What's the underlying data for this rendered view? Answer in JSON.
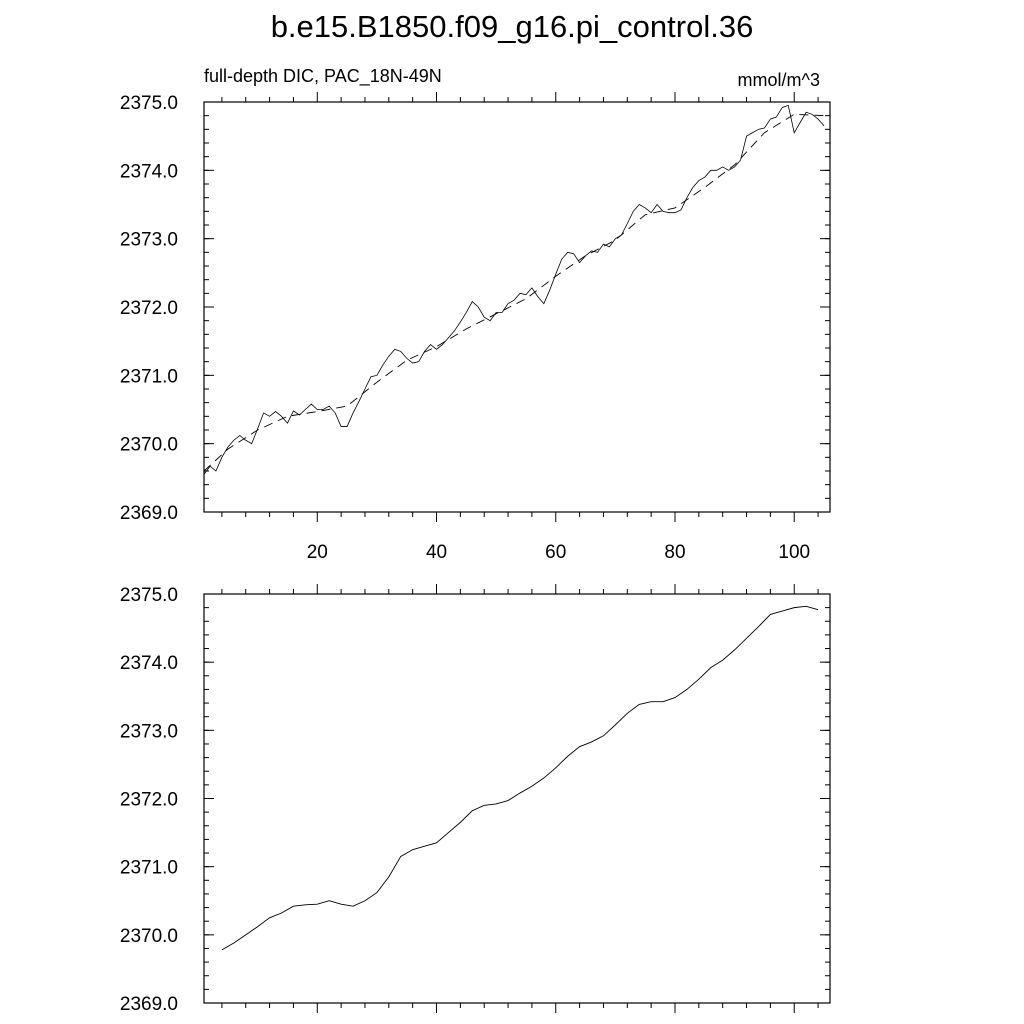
{
  "figure": {
    "title": "b.e15.B1850.f09_g16.pi_control.36"
  },
  "chart_data": [
    {
      "type": "line",
      "title": "full-depth DIC, PAC_18N-49N",
      "units": "mmol/m^3",
      "xlim": [
        1,
        106
      ],
      "ylim": [
        2369.0,
        2375.0
      ],
      "xticks": [
        20,
        40,
        60,
        80,
        100
      ],
      "yticks": [
        2369.0,
        2370.0,
        2371.0,
        2372.0,
        2373.0,
        2374.0,
        2375.0
      ],
      "ytick_labels": [
        "2369.0",
        "2370.0",
        "2371.0",
        "2372.0",
        "2373.0",
        "2374.0",
        "2375.0"
      ],
      "xtick_labels": [
        "20",
        "40",
        "60",
        "80",
        "100"
      ],
      "series": [
        {
          "style": "solid",
          "x": [
            1,
            2,
            3,
            4,
            5,
            6,
            7,
            8,
            9,
            10,
            11,
            12,
            13,
            14,
            15,
            16,
            17,
            18,
            19,
            20,
            21,
            22,
            23,
            24,
            25,
            26,
            27,
            28,
            29,
            30,
            31,
            32,
            33,
            34,
            35,
            36,
            37,
            38,
            39,
            40,
            41,
            42,
            43,
            44,
            45,
            46,
            47,
            48,
            49,
            50,
            51,
            52,
            53,
            54,
            55,
            56,
            57,
            58,
            59,
            60,
            61,
            62,
            63,
            64,
            65,
            66,
            67,
            68,
            69,
            70,
            71,
            72,
            73,
            74,
            75,
            76,
            77,
            78,
            79,
            80,
            81,
            82,
            83,
            84,
            85,
            86,
            87,
            88,
            89,
            90,
            91,
            92,
            93,
            94,
            95,
            96,
            97,
            98,
            99,
            100,
            101,
            102,
            103,
            104,
            105
          ],
          "values": [
            2369.55,
            2369.67,
            2369.6,
            2369.8,
            2369.95,
            2370.05,
            2370.12,
            2370.05,
            2370.0,
            2370.22,
            2370.45,
            2370.4,
            2370.47,
            2370.4,
            2370.3,
            2370.48,
            2370.42,
            2370.5,
            2370.58,
            2370.5,
            2370.5,
            2370.55,
            2370.45,
            2370.25,
            2370.25,
            2370.45,
            2370.62,
            2370.8,
            2370.98,
            2371.0,
            2371.15,
            2371.28,
            2371.38,
            2371.35,
            2371.25,
            2371.18,
            2371.2,
            2371.35,
            2371.45,
            2371.38,
            2371.45,
            2371.55,
            2371.65,
            2371.78,
            2371.92,
            2372.08,
            2372.0,
            2371.85,
            2371.8,
            2371.92,
            2371.92,
            2372.05,
            2372.1,
            2372.2,
            2372.18,
            2372.28,
            2372.15,
            2372.05,
            2372.25,
            2372.48,
            2372.7,
            2372.8,
            2372.78,
            2372.65,
            2372.75,
            2372.82,
            2372.8,
            2372.92,
            2372.88,
            2373.0,
            2373.05,
            2373.22,
            2373.4,
            2373.5,
            2373.45,
            2373.38,
            2373.5,
            2373.4,
            2373.38,
            2373.38,
            2373.42,
            2373.6,
            2373.75,
            2373.85,
            2373.9,
            2374.0,
            2374.0,
            2374.05,
            2374.0,
            2374.05,
            2374.15,
            2374.5,
            2374.55,
            2374.6,
            2374.62,
            2374.75,
            2374.78,
            2374.92,
            2374.95,
            2374.55,
            2374.7,
            2374.85,
            2374.82,
            2374.75,
            2374.65
          ]
        },
        {
          "style": "dashed",
          "x": [
            1,
            5,
            10,
            15,
            20,
            25,
            30,
            35,
            40,
            45,
            50,
            55,
            60,
            65,
            70,
            75,
            80,
            85,
            90,
            95,
            100,
            105
          ],
          "values": [
            2369.6,
            2369.92,
            2370.2,
            2370.4,
            2370.47,
            2370.55,
            2370.9,
            2371.22,
            2371.42,
            2371.68,
            2371.9,
            2372.12,
            2372.45,
            2372.75,
            2372.98,
            2373.35,
            2373.45,
            2373.75,
            2374.08,
            2374.55,
            2374.82,
            2374.8
          ]
        }
      ]
    },
    {
      "type": "line",
      "xlim": [
        1,
        106
      ],
      "ylim": [
        2369.0,
        2375.0
      ],
      "xticks": [
        20,
        40,
        60,
        80,
        100
      ],
      "yticks": [
        2369.0,
        2370.0,
        2371.0,
        2372.0,
        2373.0,
        2374.0,
        2375.0
      ],
      "ytick_labels": [
        "2369.0",
        "2370.0",
        "2371.0",
        "2372.0",
        "2373.0",
        "2374.0",
        "2375.0"
      ],
      "series": [
        {
          "style": "solid",
          "x": [
            4,
            6,
            8,
            10,
            12,
            14,
            16,
            18,
            20,
            22,
            24,
            26,
            28,
            30,
            32,
            34,
            36,
            38,
            40,
            42,
            44,
            46,
            48,
            50,
            52,
            54,
            56,
            58,
            60,
            62,
            64,
            66,
            68,
            70,
            72,
            74,
            76,
            78,
            80,
            82,
            84,
            86,
            88,
            90,
            92,
            94,
            96,
            98,
            100,
            102,
            104
          ],
          "values": [
            2369.78,
            2369.88,
            2370.0,
            2370.12,
            2370.25,
            2370.32,
            2370.42,
            2370.44,
            2370.45,
            2370.5,
            2370.45,
            2370.42,
            2370.5,
            2370.62,
            2370.85,
            2371.15,
            2371.25,
            2371.3,
            2371.35,
            2371.5,
            2371.65,
            2371.82,
            2371.9,
            2371.92,
            2371.97,
            2372.08,
            2372.18,
            2372.3,
            2372.45,
            2372.62,
            2372.76,
            2372.83,
            2372.92,
            2373.08,
            2373.25,
            2373.38,
            2373.42,
            2373.42,
            2373.48,
            2373.6,
            2373.75,
            2373.92,
            2374.03,
            2374.18,
            2374.35,
            2374.52,
            2374.7,
            2374.75,
            2374.8,
            2374.82,
            2374.77
          ]
        }
      ]
    }
  ]
}
